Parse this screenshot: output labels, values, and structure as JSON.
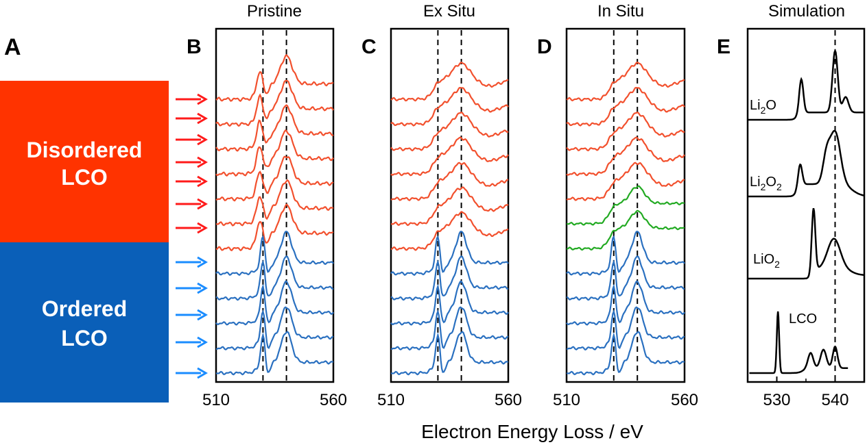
{
  "panels": {
    "A": {
      "letter": "A",
      "disordered_label": [
        "Disordered",
        "LCO"
      ],
      "ordered_label": [
        "Ordered",
        "LCO"
      ],
      "disordered_color": "#ff3300",
      "ordered_color": "#0a5fb8"
    },
    "arrows": {
      "red_color": "#ff1a1a",
      "blue_color": "#1a8cff",
      "red_count": 7,
      "blue_count": 5
    }
  },
  "colors": {
    "red": "#f2502d",
    "blue": "#2a70c0",
    "green": "#22aa22",
    "black": "#000000"
  },
  "x_axis_title": "Electron Energy Loss / eV",
  "chart_data": [
    {
      "id": "B",
      "type": "line",
      "title": "Pristine",
      "letter": "B",
      "xlim": [
        510,
        560
      ],
      "xticks": [
        "510",
        "560"
      ],
      "dashed_lines": [
        530,
        540
      ],
      "series_colors": [
        "red",
        "red",
        "red",
        "red",
        "red",
        "red",
        "red",
        "blue",
        "blue",
        "blue",
        "blue",
        "blue"
      ],
      "peaks": [
        530,
        540
      ]
    },
    {
      "id": "C",
      "type": "line",
      "title": "Ex Situ",
      "letter": "C",
      "xlim": [
        510,
        560
      ],
      "xticks": [
        "510",
        "560"
      ],
      "dashed_lines": [
        530,
        540
      ],
      "series_colors": [
        "red",
        "red",
        "red",
        "red",
        "red",
        "red",
        "red",
        "blue",
        "blue",
        "blue",
        "blue",
        "blue"
      ],
      "peaks": [
        530,
        540
      ]
    },
    {
      "id": "D",
      "type": "line",
      "title": "In Situ",
      "letter": "D",
      "xlim": [
        510,
        560
      ],
      "xticks": [
        "510",
        "560"
      ],
      "dashed_lines": [
        530,
        540
      ],
      "series_colors": [
        "red",
        "red",
        "red",
        "red",
        "red",
        "green",
        "green",
        "blue",
        "blue",
        "blue",
        "blue",
        "blue"
      ],
      "peaks": [
        530,
        540
      ]
    },
    {
      "id": "E",
      "type": "line",
      "title": "Simulation",
      "letter": "E",
      "xlim": [
        525,
        545
      ],
      "xticks": [
        "530",
        "540"
      ],
      "dashed_lines": [
        540
      ],
      "series": [
        {
          "name": "Li₂O",
          "label_main": "Li",
          "label_sub": "2",
          "label_tail": "O",
          "peaks": [
            534.2,
            540.0
          ]
        },
        {
          "name": "Li₂O₂",
          "label_main": "Li",
          "label_sub": "2",
          "label_tail": "O",
          "label_sub2": "2",
          "peaks": [
            534.0,
            540.0
          ]
        },
        {
          "name": "LiO₂",
          "label_main": "LiO",
          "label_sub": "2",
          "peaks": [
            536.3,
            540.0
          ]
        },
        {
          "name": "LCO",
          "label_main": "LCO",
          "peaks": [
            530.2,
            535.8,
            538.0,
            540.0
          ]
        }
      ]
    }
  ]
}
